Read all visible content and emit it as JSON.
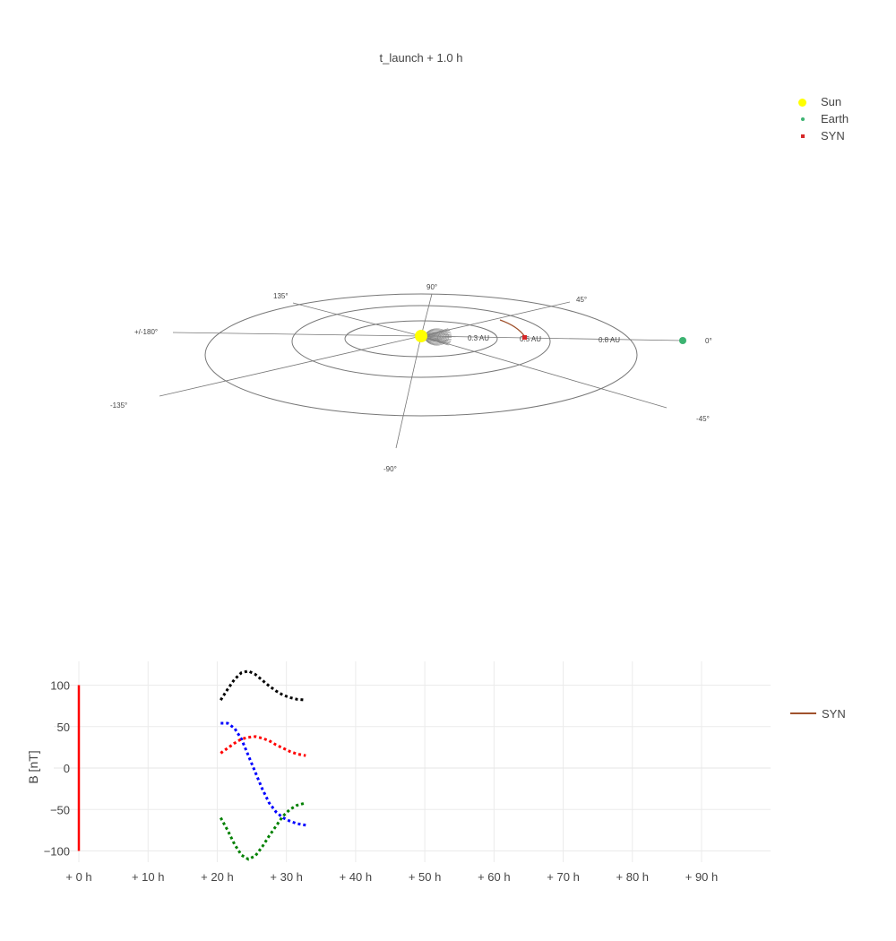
{
  "title": "t_launch + 1.0 h",
  "colors": {
    "sun": "#ffff00",
    "earth": "#3cb371",
    "syn": "#d62728",
    "syn_trail": "#a0522d",
    "grid": "#777777",
    "bx": "#ff0000",
    "by": "#0000ff",
    "bz": "#008000",
    "btot": "#000000"
  },
  "legend_3d": [
    {
      "label": "Sun",
      "symbol": "circle",
      "color": "#ffff00"
    },
    {
      "label": "Earth",
      "symbol": "circle",
      "color": "#3cb371"
    },
    {
      "label": "SYN",
      "symbol": "square",
      "color": "#d62728"
    }
  ],
  "polar_labels": {
    "angles": [
      "0°",
      "45°",
      "90°",
      "135°",
      "+/-180°",
      "-135°",
      "-90°",
      "-45°"
    ],
    "radii": [
      "0.3 AU",
      "0.5 AU",
      "0.8 AU"
    ]
  },
  "chart_data": [
    {
      "type": "scatter",
      "projection": "3d-heliocentric",
      "title": "t_launch + 1.0 h",
      "radial_rings_au": [
        0.3,
        0.5,
        0.8
      ],
      "angle_spokes_deg": [
        0,
        45,
        90,
        135,
        180,
        -135,
        -90,
        -45
      ],
      "series": [
        {
          "name": "Sun",
          "r_au": 0.0,
          "lon_deg": 0
        },
        {
          "name": "Earth",
          "r_au": 0.98,
          "lon_deg": 0
        },
        {
          "name": "SYN",
          "r_au": 0.45,
          "lon_deg": 0
        }
      ],
      "cme_front_r_au": 0.12
    },
    {
      "type": "line",
      "ylabel": "B [nT]",
      "xlabel": "",
      "x_unit": "h",
      "xlim": [
        -2,
        100
      ],
      "ylim": [
        -110,
        126
      ],
      "x_ticks": [
        0,
        10,
        20,
        30,
        40,
        50,
        60,
        70,
        80,
        90
      ],
      "x_tick_labels": [
        "+ 0 h",
        "+ 10 h",
        "+ 20 h",
        "+ 30 h",
        "+ 40 h",
        "+ 50 h",
        "+ 60 h",
        "+ 70 h",
        "+ 80 h",
        "+ 90 h"
      ],
      "y_ticks": [
        -100,
        -50,
        0,
        50,
        100
      ],
      "y_tick_labels": [
        "−100",
        "−50",
        "0",
        "50",
        "100"
      ],
      "legend": [
        {
          "label": "SYN",
          "color": "#a0522d"
        }
      ],
      "current_time_marker": {
        "x": 0,
        "y_range": [
          -100,
          100
        ],
        "color": "#ff0000"
      },
      "series": [
        {
          "color": "#000000",
          "dash": "dot",
          "x": [
            20.5,
            21.5,
            22.5,
            23.5,
            24.5,
            25.5,
            26.5,
            27.5,
            28.5,
            29.5,
            30.5,
            31.5,
            32.8
          ],
          "y": [
            82,
            95,
            107,
            115,
            117,
            113,
            106,
            99,
            93,
            88,
            85,
            83,
            82
          ]
        },
        {
          "color": "#0000ff",
          "dash": "dot",
          "x": [
            20.5,
            21.5,
            22.5,
            23.5,
            24.5,
            25.5,
            26.5,
            27.5,
            28.5,
            29.5,
            30.5,
            31.5,
            32.8
          ],
          "y": [
            54,
            54,
            48,
            35,
            15,
            -5,
            -25,
            -42,
            -53,
            -60,
            -64,
            -67,
            -69
          ]
        },
        {
          "color": "#ff0000",
          "dash": "dot",
          "x": [
            20.5,
            21.5,
            22.5,
            23.5,
            24.5,
            25.5,
            26.5,
            27.5,
            28.5,
            29.5,
            30.5,
            31.5,
            32.8
          ],
          "y": [
            18,
            24,
            30,
            35,
            37,
            38,
            36,
            33,
            28,
            24,
            20,
            17,
            15
          ]
        },
        {
          "color": "#008000",
          "dash": "dot",
          "x": [
            20.5,
            21.5,
            22.5,
            23.5,
            24.5,
            25.5,
            26.5,
            27.5,
            28.5,
            29.5,
            30.5,
            31.5,
            32.8
          ],
          "y": [
            -60,
            -75,
            -92,
            -105,
            -110,
            -106,
            -95,
            -82,
            -70,
            -58,
            -50,
            -45,
            -42
          ]
        }
      ]
    }
  ]
}
